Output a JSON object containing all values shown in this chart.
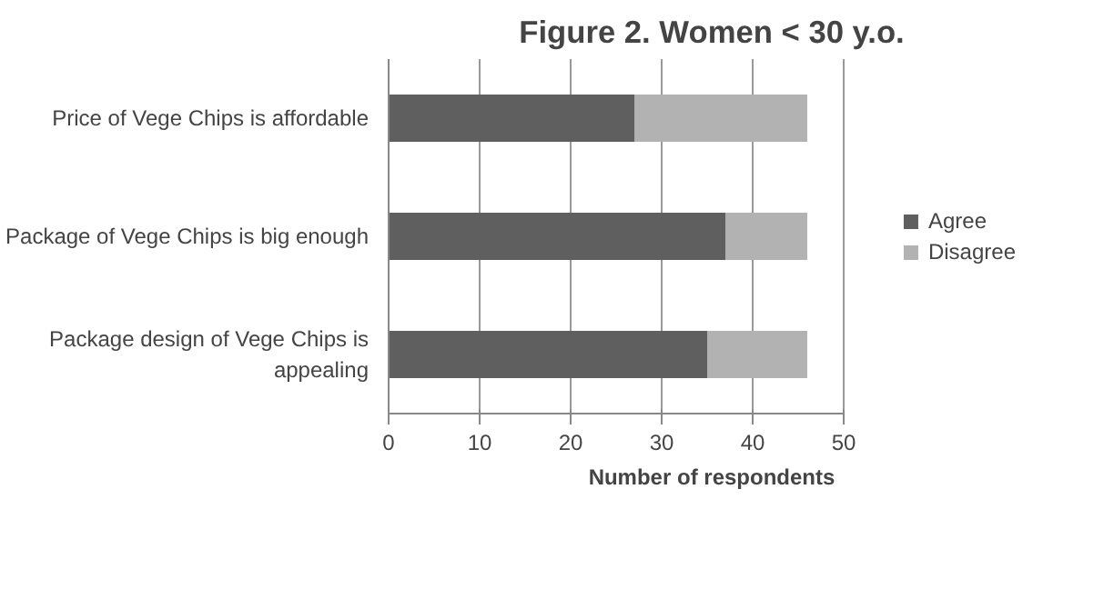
{
  "chart_data": {
    "type": "bar",
    "orientation": "horizontal",
    "stacked": true,
    "title": "Figure 2. Women < 30 y.o.",
    "xlabel": "Number of respondents",
    "categories": [
      "Price of Vege Chips is affordable",
      "Package of Vege Chips is big enough",
      "Package design of Vege Chips is appealing"
    ],
    "series": [
      {
        "name": "Agree",
        "color": "#5f5f5f",
        "values": [
          27,
          37,
          35
        ]
      },
      {
        "name": "Disagree",
        "color": "#b2b2b2",
        "values": [
          19,
          9,
          11
        ]
      }
    ],
    "xlim": [
      0,
      50
    ],
    "xticks": [
      0,
      10,
      20,
      30,
      40,
      50
    ],
    "grid": "x",
    "legend": "right"
  }
}
